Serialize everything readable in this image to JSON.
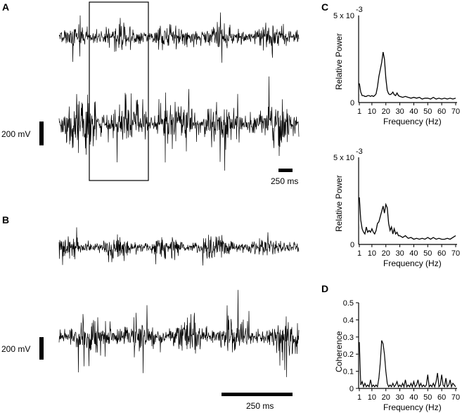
{
  "panel_labels": {
    "a": "A",
    "b": "B",
    "c": "C",
    "d": "D"
  },
  "scalebars": {
    "voltage": "200 mV",
    "time_a": "250 ms",
    "time_b": "250 ms"
  },
  "chart_data": [
    {
      "type": "line",
      "panel": "A",
      "description_hidden": "raw signal traces, two channels",
      "traces": 2
    },
    {
      "type": "line",
      "panel": "B",
      "traces": 2
    },
    {
      "type": "line",
      "panel": "C",
      "ylabel": "Relative Power",
      "xlabel": "Frequency (Hz)",
      "y_max_label": "5 x 10",
      "y_exponent": "-3",
      "y_zero_label": "0",
      "xlim": [
        1,
        70
      ],
      "ylim": [
        0,
        5
      ],
      "x_ticks": [
        "1",
        "10",
        "20",
        "30",
        "40",
        "50",
        "60",
        "70"
      ],
      "x": [
        1,
        2,
        3,
        4,
        5,
        6,
        7,
        8,
        9,
        10,
        11,
        12,
        13,
        14,
        15,
        16,
        17,
        18,
        19,
        20,
        21,
        22,
        23,
        24,
        25,
        26,
        27,
        28,
        29,
        30,
        32,
        34,
        36,
        38,
        40,
        42,
        44,
        46,
        48,
        50,
        52,
        54,
        56,
        58,
        60,
        62,
        64,
        66,
        68,
        70
      ],
      "values": [
        1.1,
        0.6,
        0.4,
        0.4,
        0.35,
        0.35,
        0.4,
        0.4,
        0.35,
        0.4,
        0.35,
        0.4,
        0.5,
        0.9,
        1.5,
        1.9,
        2.3,
        2.9,
        2.5,
        1.4,
        0.7,
        0.5,
        0.45,
        0.5,
        0.6,
        0.45,
        0.4,
        0.55,
        0.4,
        0.35,
        0.3,
        0.35,
        0.3,
        0.25,
        0.3,
        0.25,
        0.3,
        0.2,
        0.25,
        0.25,
        0.2,
        0.3,
        0.2,
        0.25,
        0.2,
        0.25,
        0.2,
        0.25,
        0.2,
        0.25
      ]
    },
    {
      "type": "line",
      "panel": "C",
      "ylabel": "Relative Power",
      "xlabel": "Frequency (Hz)",
      "y_max_label": "5 x 10",
      "y_exponent": "-3",
      "y_zero_label": "0",
      "xlim": [
        1,
        70
      ],
      "ylim": [
        0,
        5
      ],
      "x_ticks": [
        "1",
        "10",
        "20",
        "30",
        "40",
        "50",
        "60",
        "70"
      ],
      "x": [
        1,
        2,
        3,
        4,
        5,
        6,
        7,
        8,
        9,
        10,
        11,
        12,
        13,
        14,
        15,
        16,
        17,
        18,
        19,
        20,
        21,
        22,
        23,
        24,
        25,
        26,
        27,
        28,
        29,
        30,
        32,
        34,
        36,
        38,
        40,
        42,
        44,
        46,
        48,
        50,
        52,
        54,
        56,
        58,
        60,
        62,
        64,
        66,
        68,
        70
      ],
      "values": [
        2.7,
        1.4,
        0.9,
        0.7,
        0.6,
        1.0,
        0.7,
        0.8,
        0.7,
        0.9,
        0.7,
        0.6,
        0.8,
        1.2,
        1.3,
        1.6,
        1.9,
        2.2,
        1.8,
        2.3,
        2.1,
        1.2,
        0.8,
        1.0,
        0.6,
        0.9,
        0.6,
        0.7,
        0.5,
        0.5,
        0.4,
        0.5,
        0.35,
        0.4,
        0.3,
        0.35,
        0.3,
        0.35,
        0.3,
        0.4,
        0.3,
        0.4,
        0.3,
        0.35,
        0.3,
        0.3,
        0.35,
        0.3,
        0.4,
        0.5
      ]
    },
    {
      "type": "line",
      "panel": "D",
      "ylabel": "Coherence",
      "xlabel": "Frequency (Hz)",
      "xlim": [
        1,
        70
      ],
      "ylim": [
        0,
        0.5
      ],
      "x_ticks": [
        "1",
        "10",
        "20",
        "30",
        "40",
        "50",
        "60",
        "70"
      ],
      "y_ticks": [
        "0",
        "0.1",
        "0.2",
        "0.3",
        "0.4",
        "0.5"
      ],
      "x": [
        1,
        2,
        3,
        4,
        5,
        6,
        7,
        8,
        9,
        10,
        11,
        12,
        13,
        14,
        15,
        16,
        17,
        18,
        19,
        20,
        21,
        22,
        23,
        24,
        25,
        26,
        27,
        28,
        29,
        30,
        31,
        32,
        33,
        34,
        35,
        36,
        37,
        38,
        39,
        40,
        41,
        42,
        43,
        44,
        45,
        46,
        47,
        48,
        49,
        50,
        51,
        52,
        53,
        54,
        55,
        56,
        57,
        58,
        59,
        60,
        61,
        62,
        63,
        64,
        65,
        66,
        67,
        68,
        69,
        70
      ],
      "values": [
        0.27,
        0.02,
        0.04,
        0.01,
        0.03,
        0.01,
        0.02,
        0.01,
        0.05,
        0.01,
        0.02,
        0.01,
        0.02,
        0.01,
        0.06,
        0.15,
        0.28,
        0.26,
        0.2,
        0.1,
        0.03,
        0.01,
        0.02,
        0.01,
        0.03,
        0.01,
        0.02,
        0.04,
        0.01,
        0.02,
        0.01,
        0.03,
        0.01,
        0.05,
        0.01,
        0.02,
        0.01,
        0.03,
        0.01,
        0.04,
        0.01,
        0.02,
        0.05,
        0.01,
        0.03,
        0.01,
        0.02,
        0.01,
        0.02,
        0.08,
        0.01,
        0.02,
        0.01,
        0.03,
        0.01,
        0.04,
        0.09,
        0.01,
        0.02,
        0.08,
        0.02,
        0.01,
        0.06,
        0.01,
        0.02,
        0.05,
        0.01,
        0.03,
        0.02,
        0.01
      ]
    }
  ]
}
